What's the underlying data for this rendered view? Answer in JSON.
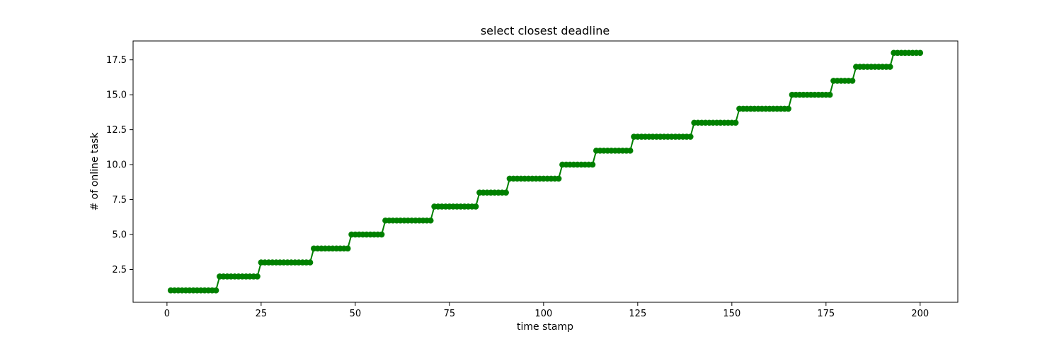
{
  "chart_data": {
    "type": "line",
    "title": "select closest deadline",
    "xlabel": "time stamp",
    "ylabel": "# of online task",
    "xlim": [
      -9,
      210
    ],
    "ylim": [
      0.15,
      18.85
    ],
    "xticks": [
      0,
      25,
      50,
      75,
      100,
      125,
      150,
      175,
      200
    ],
    "xtick_labels": [
      "0",
      "25",
      "50",
      "75",
      "100",
      "125",
      "150",
      "175",
      "200"
    ],
    "yticks": [
      2.5,
      5.0,
      7.5,
      10.0,
      12.5,
      15.0,
      17.5
    ],
    "ytick_labels": [
      "2.5",
      "5.0",
      "7.5",
      "10.0",
      "12.5",
      "15.0",
      "17.5"
    ],
    "grid": false,
    "legend": null,
    "series": [
      {
        "color": "#008000",
        "marker": "circle",
        "x_start": 1,
        "x_end": 200,
        "step_x": [
          14,
          25,
          39,
          49,
          58,
          71,
          83,
          91,
          105,
          114,
          124,
          140,
          152,
          166,
          177,
          183,
          193
        ],
        "initial_value": 1
      }
    ]
  }
}
